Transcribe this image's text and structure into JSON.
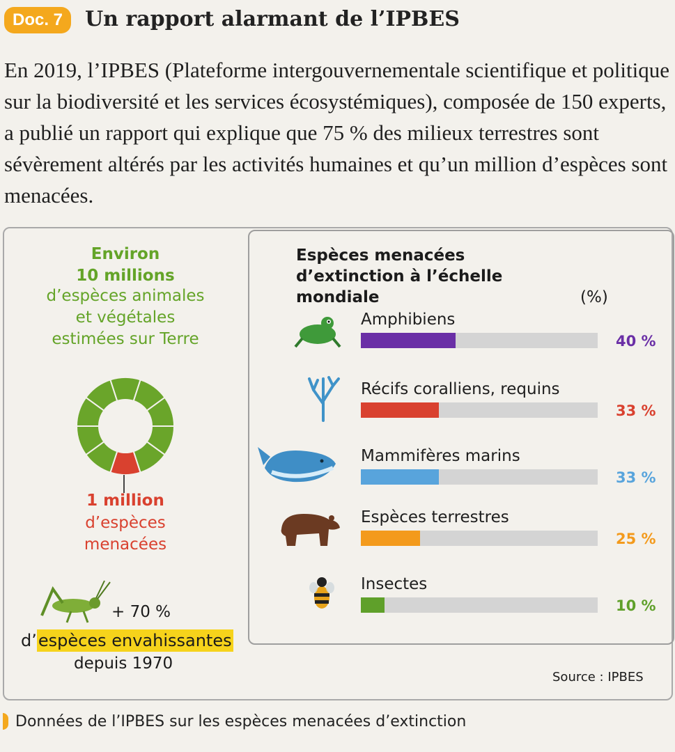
{
  "header": {
    "badge": "Doc. 7",
    "title": "Un rapport alarmant de l’IPBES"
  },
  "intro": "En 2019, l’IPBES (Plateforme intergouvernementale scientifique et politique sur la biodiversité et les services écosystémiques), composée de 150 experts, a publié un rapport qui explique que 75 % des milieux terrestres sont sévèrement altérés par les activités humaines et qu’un million d’espèces sont menacées.",
  "left": {
    "environ": "Environ",
    "ten_millions": "10 millions",
    "species_line1": "d’espèces animales",
    "species_line2": "et végétales",
    "species_line3": "estimées sur Terre",
    "one_million": "1 million",
    "threat_line1": "d’espèces",
    "threat_line2": "menacées",
    "plus70": "+ 70 %",
    "invasive_prefix": "d’",
    "invasive_highlight": "espèces envahissantes",
    "since": "depuis 1970"
  },
  "donut": {
    "segments": 10,
    "threatened_segments": 1,
    "green": "#6aa52a",
    "red": "#d9412f"
  },
  "chart_data": {
    "type": "bar",
    "title": "Espèces menacées d’extinction à l’échelle mondiale",
    "unit": "(%)",
    "categories": [
      "Amphibiens",
      "Récifs coralliens, requins",
      "Mammifères marins",
      "Espèces terrestres",
      "Insectes"
    ],
    "values": [
      40,
      33,
      33,
      25,
      10
    ],
    "labels": [
      "40 %",
      "33 %",
      "33 %",
      "25 %",
      "10 %"
    ],
    "colors": [
      "#6a2fa6",
      "#d9412f",
      "#58a4dc",
      "#f39a1c",
      "#5fa02a"
    ],
    "label_colors": [
      "#6a2fa6",
      "#d9412f",
      "#58a4dc",
      "#f39a1c",
      "#5fa02a"
    ],
    "ylim": [
      0,
      100
    ]
  },
  "source": "Source : IPBES",
  "caption": "Données de l’IPBES sur les espèces menacées d’extinction"
}
